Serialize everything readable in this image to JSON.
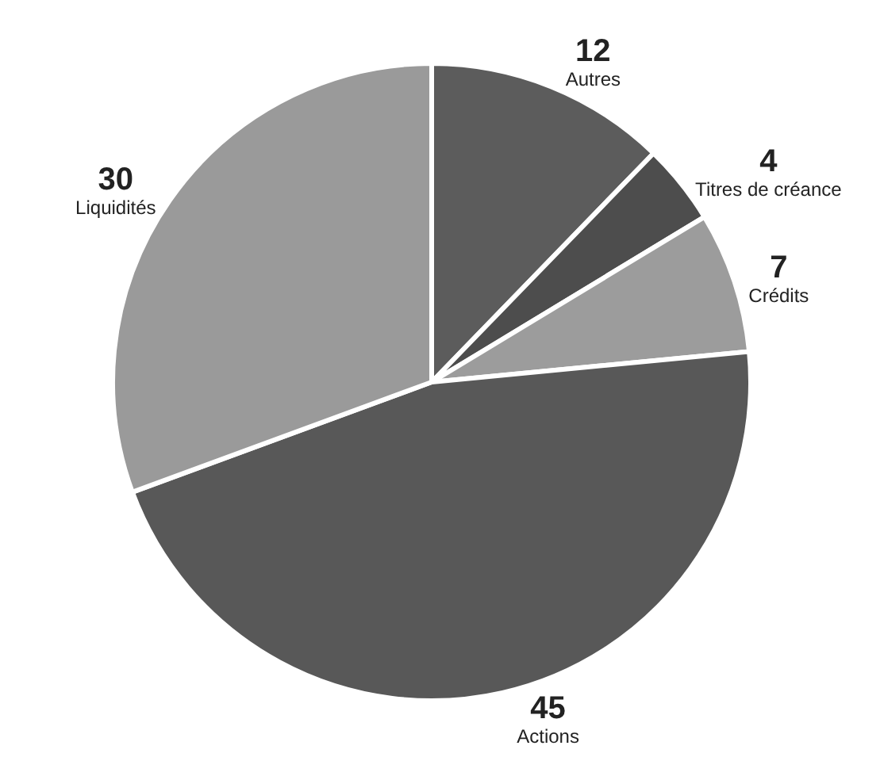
{
  "chart_data": {
    "type": "pie",
    "categories": [
      "Autres",
      "Titres de créance",
      "Crédits",
      "Actions",
      "Liquidités"
    ],
    "values": [
      12,
      4,
      7,
      45,
      30
    ],
    "colors": [
      "#5c5c5c",
      "#4d4d4d",
      "#9c9c9c",
      "#585858",
      "#9a9a9a"
    ],
    "data_labels": true,
    "legend": false
  }
}
